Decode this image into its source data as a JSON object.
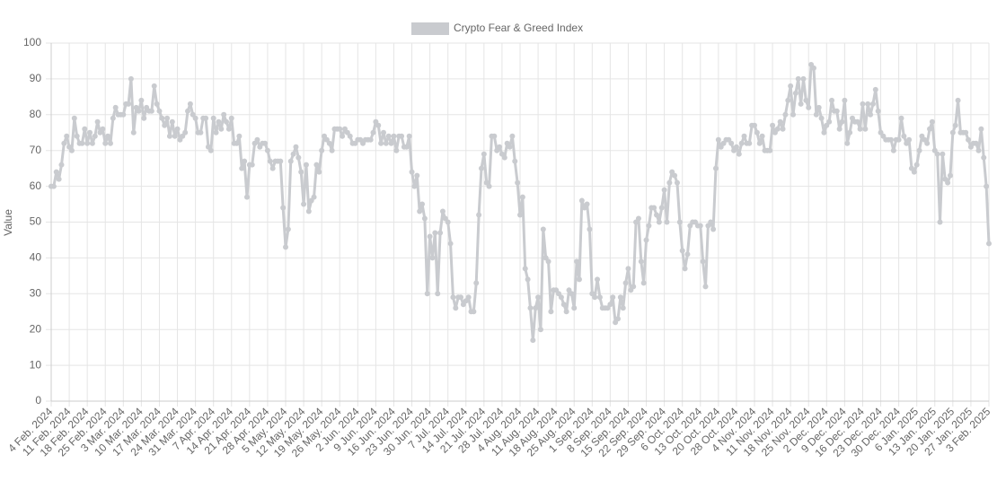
{
  "chart_data": {
    "type": "line",
    "ylabel": "Value",
    "ylim": [
      0,
      100
    ],
    "yticks": [
      0,
      10,
      20,
      30,
      40,
      50,
      60,
      70,
      80,
      90,
      100
    ],
    "grid": true,
    "categories": [
      "4 Feb. 2024",
      null,
      null,
      null,
      null,
      null,
      null,
      "11 Feb. 2024",
      null,
      null,
      null,
      null,
      null,
      null,
      "18 Feb. 2024",
      null,
      null,
      null,
      null,
      null,
      null,
      "25 Feb. 2024",
      null,
      null,
      null,
      null,
      null,
      null,
      "3 Mar. 2024",
      null,
      null,
      null,
      null,
      null,
      null,
      "10 Mar. 2024",
      null,
      null,
      null,
      null,
      null,
      null,
      "17 Mar. 2024",
      null,
      null,
      null,
      null,
      null,
      null,
      "24 Mar. 2024",
      null,
      null,
      null,
      null,
      null,
      null,
      "31 Mar. 2024",
      null,
      null,
      null,
      null,
      null,
      null,
      "7 Apr. 2024",
      null,
      null,
      null,
      null,
      null,
      null,
      "14 Apr. 2024",
      null,
      null,
      null,
      null,
      null,
      null,
      "21 Apr. 2024",
      null,
      null,
      null,
      null,
      null,
      null,
      "28 Apr. 2024",
      null,
      null,
      null,
      null,
      null,
      null,
      "5 May. 2024",
      null,
      null,
      null,
      null,
      null,
      null,
      "12 May. 2024",
      null,
      null,
      null,
      null,
      null,
      null,
      "19 May. 2024",
      null,
      null,
      null,
      null,
      null,
      null,
      "26 May. 2024",
      null,
      null,
      null,
      null,
      null,
      null,
      "2 Jun. 2024",
      null,
      null,
      null,
      null,
      null,
      null,
      "9 Jun. 2024",
      null,
      null,
      null,
      null,
      null,
      null,
      "16 Jun. 2024",
      null,
      null,
      null,
      null,
      null,
      null,
      "23 Jun. 2024",
      null,
      null,
      null,
      null,
      null,
      null,
      "30 Jun. 2024",
      null,
      null,
      null,
      null,
      null,
      null,
      "7 Jul. 2024",
      null,
      null,
      null,
      null,
      null,
      null,
      "14 Jul. 2024",
      null,
      null,
      null,
      null,
      null,
      null,
      "21 Jul. 2024",
      null,
      null,
      null,
      null,
      null,
      null,
      "28 Jul. 2024",
      null,
      null,
      null,
      null,
      null,
      null,
      "4 Aug. 2024",
      null,
      null,
      null,
      null,
      null,
      null,
      "11 Aug. 2024",
      null,
      null,
      null,
      null,
      null,
      null,
      "18 Aug. 2024",
      null,
      null,
      null,
      null,
      null,
      null,
      "25 Aug. 2024",
      null,
      null,
      null,
      null,
      null,
      null,
      "1 Sep. 2024",
      null,
      null,
      null,
      null,
      null,
      null,
      "8 Sep. 2024",
      null,
      null,
      null,
      null,
      null,
      null,
      "15 Sep. 2024",
      null,
      null,
      null,
      null,
      null,
      null,
      "22 Sep. 2024",
      null,
      null,
      null,
      null,
      null,
      null,
      "29 Sep. 2024",
      null,
      null,
      null,
      null,
      null,
      null,
      "6 Oct. 2024",
      null,
      null,
      null,
      null,
      null,
      null,
      "13 Oct. 2024",
      null,
      null,
      null,
      null,
      null,
      null,
      "20 Oct. 2024",
      null,
      null,
      null,
      null,
      null,
      null,
      "28 Oct. 2024",
      null,
      null,
      null,
      null,
      null,
      null,
      "4 Nov. 2024",
      null,
      null,
      null,
      null,
      null,
      null,
      "11 Nov. 2024",
      null,
      null,
      null,
      null,
      null,
      null,
      "18 Nov. 2024",
      null,
      null,
      null,
      null,
      null,
      null,
      "25 Nov. 2024",
      null,
      null,
      null,
      null,
      null,
      null,
      "2 Dec. 2024",
      null,
      null,
      null,
      null,
      null,
      null,
      "9 Dec. 2024",
      null,
      null,
      null,
      null,
      null,
      null,
      "16 Dec. 2024",
      null,
      null,
      null,
      null,
      null,
      null,
      "23 Dec. 2024",
      null,
      null,
      null,
      null,
      null,
      null,
      "30 Dec. 2024",
      null,
      null,
      null,
      null,
      null,
      null,
      "6 Jan. 2025",
      null,
      null,
      null,
      null,
      null,
      null,
      "13 Jan. 2025",
      null,
      null,
      null,
      null,
      null,
      null,
      "20 Jan. 2025",
      null,
      null,
      null,
      null,
      null,
      null,
      "27 Jan. 2025",
      null,
      null,
      null,
      null,
      null,
      null,
      "3 Feb. 2025"
    ],
    "series": [
      {
        "name": "Crypto Fear & Greed Index",
        "color": "#c9cbcf",
        "values": [
          60,
          60,
          64,
          62,
          66,
          72,
          74,
          71,
          70,
          79,
          74,
          72,
          72,
          76,
          72,
          75,
          72,
          74,
          78,
          75,
          76,
          72,
          74,
          72,
          79,
          82,
          80,
          80,
          80,
          83,
          83,
          90,
          75,
          82,
          81,
          84,
          79,
          82,
          81,
          81,
          88,
          83,
          81,
          79,
          77,
          79,
          74,
          78,
          74,
          76,
          73,
          74,
          75,
          81,
          83,
          80,
          79,
          75,
          75,
          79,
          79,
          71,
          70,
          79,
          75,
          78,
          76,
          80,
          78,
          76,
          79,
          72,
          72,
          74,
          65,
          67,
          57,
          66,
          66,
          72,
          73,
          71,
          72,
          72,
          70,
          67,
          65,
          67,
          67,
          67,
          54,
          43,
          48,
          67,
          69,
          71,
          68,
          64,
          55,
          66,
          53,
          56,
          57,
          66,
          64,
          70,
          74,
          73,
          72,
          70,
          76,
          76,
          76,
          74,
          76,
          75,
          74,
          72,
          72,
          73,
          73,
          72,
          73,
          73,
          73,
          75,
          78,
          77,
          72,
          75,
          72,
          74,
          72,
          74,
          70,
          74,
          74,
          71,
          71,
          74,
          64,
          60,
          63,
          53,
          55,
          51,
          30,
          46,
          40,
          47,
          30,
          47,
          53,
          51,
          50,
          44,
          29,
          26,
          29,
          29,
          27,
          28,
          29,
          25,
          25,
          33,
          52,
          65,
          69,
          61,
          60,
          74,
          74,
          70,
          71,
          69,
          68,
          72,
          71,
          74,
          67,
          61,
          52,
          57,
          37,
          34,
          26,
          17,
          26,
          29,
          20,
          48,
          40,
          39,
          25,
          31,
          31,
          30,
          29,
          27,
          25,
          31,
          30,
          26,
          39,
          34,
          56,
          54,
          55,
          48,
          30,
          29,
          34,
          29,
          26,
          26,
          26,
          27,
          29,
          22,
          23,
          29,
          26,
          33,
          37,
          31,
          32,
          50,
          51,
          39,
          33,
          45,
          49,
          54,
          54,
          52,
          50,
          54,
          59,
          50,
          61,
          64,
          63,
          61,
          50,
          42,
          37,
          41,
          49,
          50,
          50,
          49,
          49,
          39,
          32,
          49,
          50,
          48,
          65,
          73,
          71,
          72,
          73,
          73,
          72,
          70,
          71,
          69,
          72,
          74,
          72,
          72,
          77,
          77,
          75,
          72,
          74,
          70,
          70,
          70,
          77,
          75,
          76,
          78,
          76,
          80,
          84,
          88,
          80,
          86,
          90,
          83,
          90,
          84,
          82,
          94,
          93,
          80,
          82,
          79,
          75,
          77,
          78,
          84,
          81,
          81,
          76,
          78,
          84,
          72,
          75,
          79,
          78,
          78,
          76,
          83,
          76,
          83,
          80,
          83,
          87,
          81,
          75,
          74,
          73,
          73,
          73,
          70,
          73,
          73,
          79,
          74,
          72,
          73,
          65,
          64,
          66,
          70,
          74,
          73,
          72,
          76,
          78,
          70,
          69,
          50,
          69,
          62,
          61,
          63,
          75,
          77,
          84,
          75,
          75,
          75,
          73,
          71,
          72,
          72,
          70,
          76,
          68,
          60,
          44
        ]
      }
    ]
  }
}
